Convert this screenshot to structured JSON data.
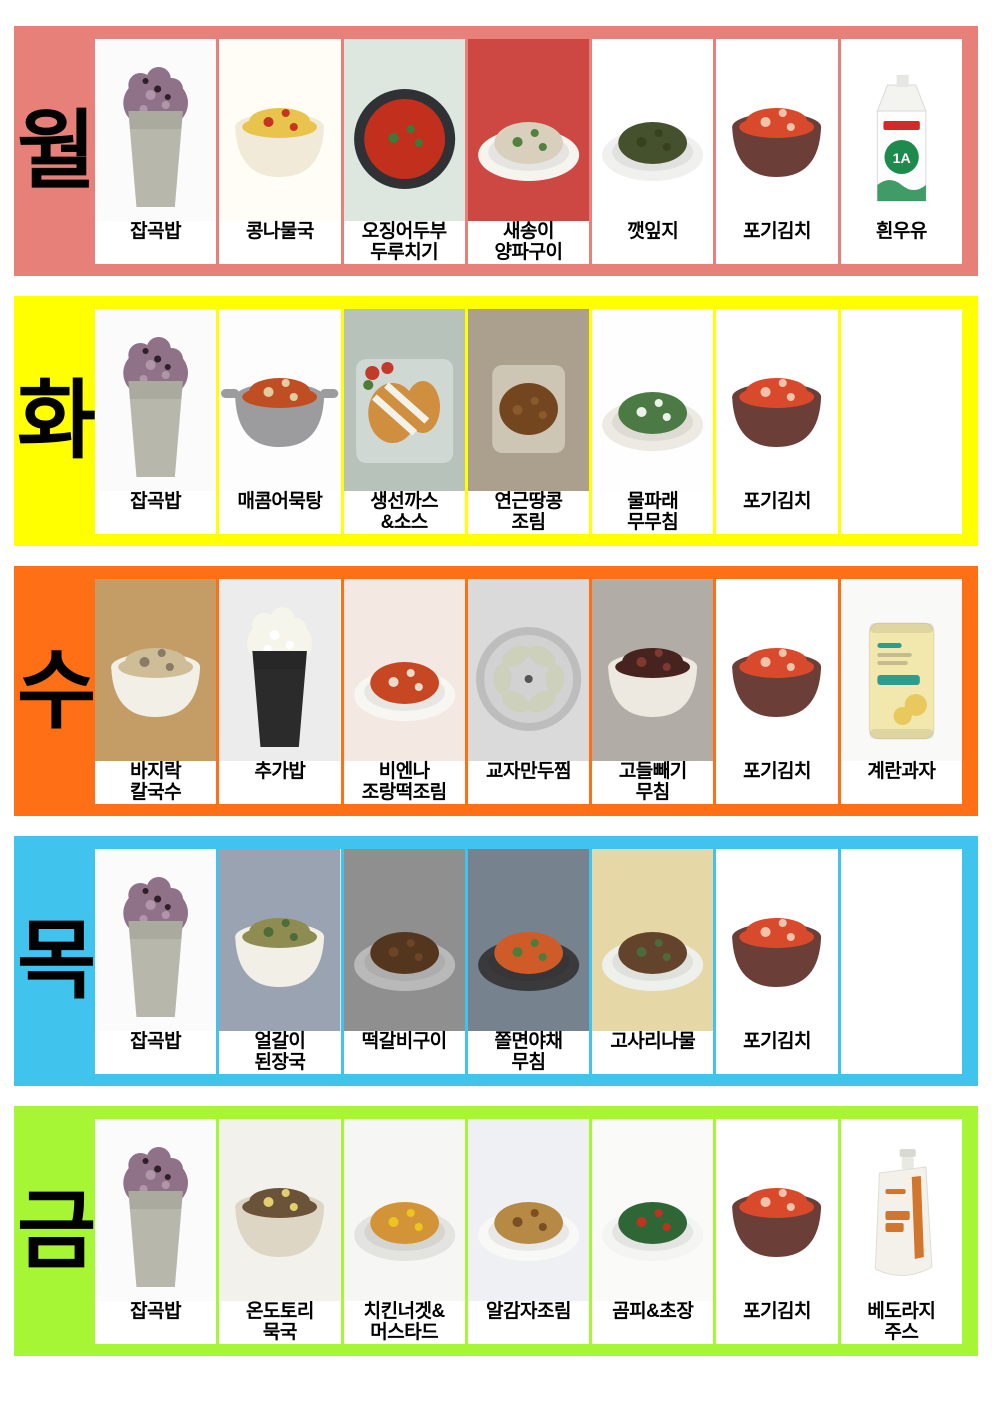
{
  "menu": {
    "type": "weekly-lunch-menu-board",
    "days": [
      {
        "day": "월",
        "band_color": "#E8807A",
        "items": [
          {
            "label": "잡곡밥",
            "photo": {
              "icon": "multigrain-rice-photo",
              "art": "cup",
              "bg": "#fbfbfb",
              "vessel": "#b7b7ab",
              "food": "#8f7188",
              "food2": "#b096a8",
              "garnish": "#2e1f2a"
            }
          },
          {
            "label": "콩나물국",
            "photo": {
              "icon": "bean-sprout-soup-photo",
              "art": "bowl",
              "bg": "#fffdf6",
              "vessel": "#f1ead8",
              "food": "#e9c44d",
              "garnish": "#c53622"
            }
          },
          {
            "label": "오징어두부\n두루치기",
            "photo": {
              "icon": "squid-tofu-stirfry-photo",
              "art": "pan",
              "bg": "#dde6df",
              "vessel": "#2f3134",
              "food": "#c22f1d",
              "garnish": "#3c7a3a"
            }
          },
          {
            "label": "새송이\n양파구이",
            "photo": {
              "icon": "mushroom-onion-grill-photo",
              "art": "plate",
              "bg": "#cd4743",
              "vessel": "#f6f4ef",
              "food": "#d8d0bd",
              "garnish": "#52803e"
            }
          },
          {
            "label": "깻잎지",
            "photo": {
              "icon": "perilla-leaf-photo",
              "art": "plate",
              "bg": "#ffffff",
              "vessel": "#f0f0ee",
              "food": "#45502c",
              "garnish": "#37411f"
            }
          },
          {
            "label": "포기김치",
            "photo": {
              "icon": "kimchi-photo",
              "art": "bowl",
              "bg": "#ffffff",
              "vessel": "#6b3f37",
              "food": "#d94a2c",
              "garnish": "#f2c3ab"
            }
          },
          {
            "label": "흰우유",
            "photo": {
              "icon": "white-milk-photo",
              "art": "carton",
              "bg": "#ffffff",
              "accent": "#d02a2a",
              "accent2": "#1e8a4c",
              "text": "1A"
            }
          }
        ]
      },
      {
        "day": "화",
        "band_color": "#FFFF00",
        "items": [
          {
            "label": "잡곡밥",
            "photo": {
              "icon": "multigrain-rice-photo",
              "art": "cup",
              "bg": "#fbfbfb",
              "vessel": "#b7b7ab",
              "food": "#8f7188",
              "food2": "#b096a8",
              "garnish": "#2e1f2a"
            }
          },
          {
            "label": "매콤어묵탕",
            "photo": {
              "icon": "spicy-fishcake-soup-photo",
              "art": "pot",
              "bg": "#fdfdfd",
              "vessel": "#9c9c9e",
              "food": "#bf4f23",
              "garnish": "#e0cda0"
            }
          },
          {
            "label": "생선까스\n&소스",
            "photo": {
              "icon": "fish-cutlet-sauce-photo",
              "art": "tray",
              "bg": "#b7c2ba",
              "vessel": "#cfd8d2",
              "food": "#cf8f3e",
              "garnish": "#f3f2ea",
              "extra": "tomato"
            }
          },
          {
            "label": "연근땅콩\n조림",
            "photo": {
              "icon": "lotus-root-peanut-photo",
              "art": "squaredish",
              "bg": "#ab9f8d",
              "vessel": "#cdc6b4",
              "food": "#74461f",
              "garnish": "#8a5a2c"
            }
          },
          {
            "label": "물파래\n무무침",
            "photo": {
              "icon": "seaweed-radish-salad-photo",
              "art": "plate",
              "bg": "#fefefe",
              "vessel": "#eceae2",
              "food": "#4b7a45",
              "garnish": "#edf2e9"
            }
          },
          {
            "label": "포기김치",
            "photo": {
              "icon": "kimchi-photo",
              "art": "bowl",
              "bg": "#ffffff",
              "vessel": "#6b3f37",
              "food": "#d94a2c",
              "garnish": "#f2c3ab"
            }
          },
          {
            "label": "",
            "photo": null
          }
        ]
      },
      {
        "day": "수",
        "band_color": "#FF6F15",
        "items": [
          {
            "label": "바지락\n칼국수",
            "photo": {
              "icon": "clam-noodle-soup-photo",
              "art": "bowl",
              "bg": "#c49c66",
              "vessel": "#f2efe6",
              "food": "#cfbd97",
              "garnish": "#8a7a66"
            }
          },
          {
            "label": "추가밥",
            "photo": {
              "icon": "extra-rice-photo",
              "art": "cup",
              "bg": "#ececec",
              "vessel": "#2b2b2b",
              "food": "#f6f5ec",
              "food2": "#ffffff"
            }
          },
          {
            "label": "비엔나\n조랑떡조림",
            "photo": {
              "icon": "vienna-ricecake-photo",
              "art": "plate",
              "bg": "#f3e9e2",
              "vessel": "#f8f6f3",
              "food": "#c64721",
              "garnish": "#e9dccd"
            }
          },
          {
            "label": "교자만두찜",
            "photo": {
              "icon": "steamed-dumpling-photo",
              "art": "steamer",
              "bg": "#dadada",
              "vessel": "#bdbdbd",
              "food": "#cdd0ba"
            }
          },
          {
            "label": "고들빼기\n무침",
            "photo": {
              "icon": "godeulppaegi-salad-photo",
              "art": "bowl",
              "bg": "#b2aca6",
              "vessel": "#ede9e1",
              "food": "#47231f",
              "garnish": "#7e3a2e"
            }
          },
          {
            "label": "포기김치",
            "photo": {
              "icon": "kimchi-photo",
              "art": "bowl",
              "bg": "#ffffff",
              "vessel": "#6b3f37",
              "food": "#d94a2c",
              "garnish": "#f2c3ab"
            }
          },
          {
            "label": "계란과자",
            "photo": {
              "icon": "egg-snack-photo",
              "art": "bag",
              "bg": "#f9f9f7",
              "vessel": "#f2e8ae",
              "accent": "#2f9d8d",
              "accent2": "#e9c95e"
            }
          }
        ]
      },
      {
        "day": "목",
        "band_color": "#40C4EE",
        "items": [
          {
            "label": "잡곡밥",
            "photo": {
              "icon": "multigrain-rice-photo",
              "art": "cup",
              "bg": "#fbfbfb",
              "vessel": "#b7b7ab",
              "food": "#8f7188",
              "food2": "#b096a8",
              "garnish": "#2e1f2a"
            }
          },
          {
            "label": "얼갈이\n된장국",
            "photo": {
              "icon": "cabbage-soybean-soup-photo",
              "art": "bowl",
              "bg": "#9aa3b2",
              "vessel": "#f2efe7",
              "food": "#8f8c52",
              "garnish": "#4d6c38"
            }
          },
          {
            "label": "떡갈비구이",
            "photo": {
              "icon": "tteokgalbi-photo",
              "art": "plate",
              "bg": "#8f8f8f",
              "vessel": "#b9b9b9",
              "food": "#54361f",
              "garnish": "#6b4526"
            }
          },
          {
            "label": "쫄면야채\n무침",
            "photo": {
              "icon": "jjolmyeon-veggie-photo",
              "art": "plate",
              "bg": "#76828e",
              "vessel": "#3a3a3c",
              "food": "#cf5c28",
              "garnish": "#4f7c3a"
            }
          },
          {
            "label": "고사리나물",
            "photo": {
              "icon": "fernbrake-namul-photo",
              "art": "plate",
              "bg": "#e5d8a6",
              "vessel": "#eef0ec",
              "food": "#63432c",
              "garnish": "#4c6a3a"
            }
          },
          {
            "label": "포기김치",
            "photo": {
              "icon": "kimchi-photo",
              "art": "bowl",
              "bg": "#ffffff",
              "vessel": "#6b3f37",
              "food": "#d94a2c",
              "garnish": "#f2c3ab"
            }
          },
          {
            "label": "",
            "photo": null
          }
        ]
      },
      {
        "day": "금",
        "band_color": "#A6F636",
        "items": [
          {
            "label": "잡곡밥",
            "photo": {
              "icon": "multigrain-rice-photo",
              "art": "cup",
              "bg": "#fbfbfb",
              "vessel": "#b7b7ab",
              "food": "#8f7188",
              "food2": "#b096a8",
              "garnish": "#2e1f2a"
            }
          },
          {
            "label": "온도토리\n묵국",
            "photo": {
              "icon": "acorn-jelly-soup-photo",
              "art": "bowl",
              "bg": "#f3f1ec",
              "vessel": "#ddd6c4",
              "food": "#6b5339",
              "garnish": "#e3cf6d"
            }
          },
          {
            "label": "치킨너겟&\n머스타드",
            "photo": {
              "icon": "chicken-nugget-mustard-photo",
              "art": "plate",
              "bg": "#f6f6f4",
              "vessel": "#e3e3df",
              "food": "#d29437",
              "garnish": "#ecc520"
            }
          },
          {
            "label": "알감자조림",
            "photo": {
              "icon": "baby-potato-photo",
              "art": "plate",
              "bg": "#eef0f3",
              "vessel": "#f8f8f6",
              "food": "#b68a45",
              "garnish": "#7a4f22"
            }
          },
          {
            "label": "곰피&초장",
            "photo": {
              "icon": "gompi-chojang-photo",
              "art": "plate",
              "bg": "#fafaf8",
              "vessel": "#f4f4f2",
              "food": "#2f6636",
              "garnish": "#bf3420"
            }
          },
          {
            "label": "포기김치",
            "photo": {
              "icon": "kimchi-photo",
              "art": "bowl",
              "bg": "#ffffff",
              "vessel": "#6b3f37",
              "food": "#d94a2c",
              "garnish": "#f2c3ab"
            }
          },
          {
            "label": "베도라지\n주스",
            "photo": {
              "icon": "bellflower-juice-photo",
              "art": "pouch",
              "bg": "#ffffff",
              "vessel": "#f4f0ea",
              "accent": "#d2762d"
            }
          }
        ]
      }
    ]
  }
}
